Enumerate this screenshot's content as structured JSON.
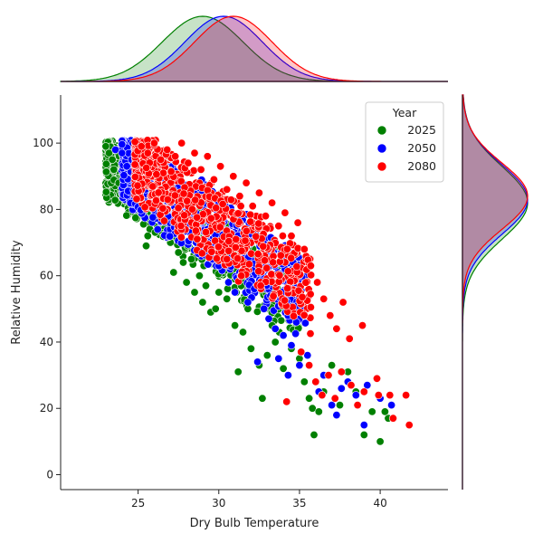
{
  "chart_data": {
    "type": "scatter",
    "xlabel": "Dry Bulb Temperature",
    "ylabel": "Relative Humidity",
    "xlim": [
      20.2,
      44.2
    ],
    "ylim": [
      -4.5,
      114.5
    ],
    "xticks": [
      25,
      30,
      35,
      40
    ],
    "yticks": [
      0,
      20,
      40,
      60,
      80,
      100
    ],
    "legend": {
      "title": "Year",
      "position": "top-right"
    },
    "marginals": {
      "top": "kde of Dry Bulb Temperature by Year",
      "right": "kde of Relative Humidity by Year"
    },
    "series": [
      {
        "name": "2025",
        "color": "#008000",
        "marginal_x": {
          "mean": 29.0,
          "sd": 2.5
        },
        "marginal_y": {
          "mean": 82.0,
          "sd": 11.0
        },
        "points": [
          [
            23,
            99
          ],
          [
            23.2,
            97
          ],
          [
            23.4,
            95
          ],
          [
            23.5,
            92
          ],
          [
            23.8,
            88
          ],
          [
            24,
            90
          ],
          [
            24.3,
            96
          ],
          [
            24.5,
            94
          ],
          [
            24.8,
            91
          ],
          [
            25,
            85
          ],
          [
            25.3,
            89
          ],
          [
            25.5,
            82
          ],
          [
            25.6,
            72
          ],
          [
            25.5,
            69
          ],
          [
            25.8,
            79
          ],
          [
            26,
            78
          ],
          [
            26.2,
            75
          ],
          [
            26.5,
            80
          ],
          [
            26.8,
            73
          ],
          [
            27,
            70
          ],
          [
            27.2,
            61
          ],
          [
            27.5,
            67
          ],
          [
            27.8,
            64
          ],
          [
            28,
            58
          ],
          [
            28.3,
            65
          ],
          [
            28.5,
            55
          ],
          [
            28.8,
            60
          ],
          [
            29,
            52
          ],
          [
            29.2,
            57
          ],
          [
            29.5,
            49
          ],
          [
            29.8,
            50
          ],
          [
            30,
            55
          ],
          [
            30.5,
            53
          ],
          [
            31,
            45
          ],
          [
            31.2,
            31
          ],
          [
            31.5,
            43
          ],
          [
            32,
            38
          ],
          [
            32.5,
            33
          ],
          [
            32.7,
            23
          ],
          [
            33,
            36
          ],
          [
            33.5,
            40
          ],
          [
            34,
            32
          ],
          [
            34.5,
            38
          ],
          [
            35,
            35
          ],
          [
            35.3,
            28
          ],
          [
            35.6,
            23
          ],
          [
            35.8,
            20
          ],
          [
            35.9,
            12
          ],
          [
            36.2,
            19
          ],
          [
            36.5,
            25
          ],
          [
            37,
            33
          ],
          [
            37.5,
            21
          ],
          [
            38,
            31
          ],
          [
            38.5,
            25
          ],
          [
            39,
            12
          ],
          [
            39.5,
            19
          ],
          [
            40,
            10
          ],
          [
            40.5,
            17
          ],
          [
            40.3,
            19
          ],
          [
            31.8,
            50
          ],
          [
            33.3,
            45
          ]
        ]
      },
      {
        "name": "2050",
        "color": "#0000ff",
        "marginal_x": {
          "mean": 30.3,
          "sd": 2.4
        },
        "marginal_y": {
          "mean": 83.0,
          "sd": 10.5
        },
        "points": [
          [
            23.6,
            98
          ],
          [
            24,
            97
          ],
          [
            24.3,
            93
          ],
          [
            24.6,
            95
          ],
          [
            25,
            100
          ],
          [
            25.4,
            96
          ],
          [
            25.8,
            91
          ],
          [
            26.2,
            94
          ],
          [
            26.5,
            88
          ],
          [
            26.9,
            83
          ],
          [
            27.2,
            86
          ],
          [
            27.5,
            79
          ],
          [
            28,
            75
          ],
          [
            28.3,
            81
          ],
          [
            28.6,
            70
          ],
          [
            29,
            68
          ],
          [
            29.3,
            74
          ],
          [
            29.6,
            65
          ],
          [
            30,
            63
          ],
          [
            30.3,
            69
          ],
          [
            30.6,
            58
          ],
          [
            31,
            55
          ],
          [
            31.3,
            61
          ],
          [
            31.8,
            52
          ],
          [
            32.2,
            56
          ],
          [
            32.4,
            34
          ],
          [
            32.8,
            50
          ],
          [
            33.1,
            47
          ],
          [
            33.5,
            44
          ],
          [
            33.7,
            35
          ],
          [
            34,
            42
          ],
          [
            34.3,
            30
          ],
          [
            34.5,
            39
          ],
          [
            35,
            33
          ],
          [
            35.5,
            36
          ],
          [
            36,
            28
          ],
          [
            36.2,
            25
          ],
          [
            36.5,
            30
          ],
          [
            37,
            21
          ],
          [
            37.3,
            18
          ],
          [
            37.6,
            26
          ],
          [
            38,
            28
          ],
          [
            38.5,
            24
          ],
          [
            39,
            15
          ],
          [
            39.2,
            27
          ],
          [
            40,
            23
          ],
          [
            40.7,
            21
          ],
          [
            34.8,
            46
          ]
        ]
      },
      {
        "name": "2080",
        "color": "#ff0000",
        "marginal_x": {
          "mean": 30.9,
          "sd": 2.4
        },
        "marginal_y": {
          "mean": 84.0,
          "sd": 10.0
        },
        "points": [
          [
            25.2,
            99
          ],
          [
            25.6,
            97
          ],
          [
            26,
            100
          ],
          [
            26.4,
            95
          ],
          [
            26.8,
            98
          ],
          [
            27.3,
            96
          ],
          [
            27.7,
            100
          ],
          [
            28.1,
            94
          ],
          [
            28.5,
            97
          ],
          [
            28.9,
            92
          ],
          [
            29.3,
            96
          ],
          [
            29.7,
            89
          ],
          [
            30.1,
            93
          ],
          [
            30.5,
            86
          ],
          [
            30.9,
            90
          ],
          [
            31.3,
            84
          ],
          [
            31.7,
            88
          ],
          [
            32.1,
            81
          ],
          [
            32.5,
            85
          ],
          [
            32.9,
            78
          ],
          [
            33.3,
            82
          ],
          [
            33.7,
            75
          ],
          [
            34.1,
            79
          ],
          [
            34.5,
            72
          ],
          [
            34.9,
            76
          ],
          [
            35.3,
            68
          ],
          [
            35.7,
            63
          ],
          [
            36.1,
            58
          ],
          [
            36.5,
            53
          ],
          [
            36.9,
            48
          ],
          [
            37.3,
            44
          ],
          [
            37.7,
            52
          ],
          [
            38.1,
            41
          ],
          [
            38.9,
            45
          ],
          [
            35.1,
            37
          ],
          [
            35.6,
            33
          ],
          [
            36,
            28
          ],
          [
            36.4,
            24
          ],
          [
            36.8,
            30
          ],
          [
            37.2,
            23
          ],
          [
            37.6,
            31
          ],
          [
            38.2,
            27
          ],
          [
            38.6,
            21
          ],
          [
            39,
            25
          ],
          [
            39.8,
            29
          ],
          [
            39.9,
            24
          ],
          [
            40.6,
            24
          ],
          [
            40.8,
            17
          ],
          [
            41.6,
            24
          ],
          [
            41.8,
            15
          ],
          [
            34.2,
            22
          ],
          [
            30.5,
            65
          ],
          [
            31.4,
            60
          ],
          [
            32.6,
            57
          ]
        ]
      }
    ]
  }
}
